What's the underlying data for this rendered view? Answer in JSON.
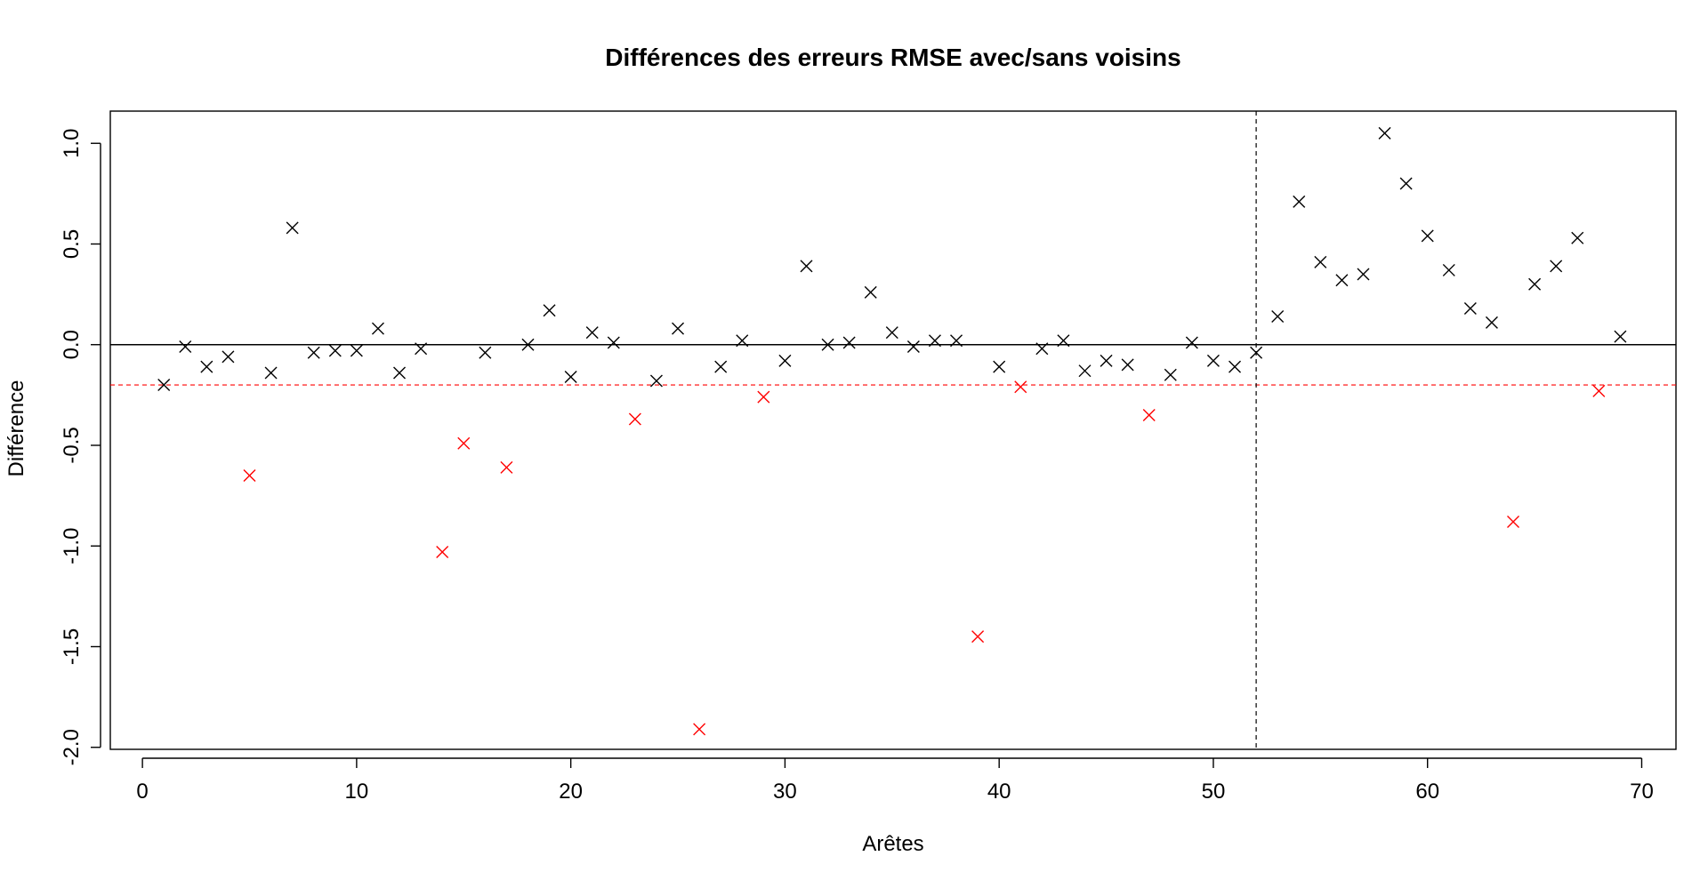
{
  "chart_data": {
    "type": "scatter",
    "title": "Différences des erreurs RMSE avec/sans voisins",
    "xlabel": "Arêtes",
    "ylabel": "Différence",
    "xlim": [
      -1.5,
      71.6
    ],
    "ylim": [
      -2.01,
      1.16
    ],
    "x_ticks": [
      0,
      10,
      20,
      30,
      40,
      50,
      60,
      70
    ],
    "x_tick_labels": [
      "0",
      "10",
      "20",
      "30",
      "40",
      "50",
      "60",
      "70"
    ],
    "y_ticks": [
      -2.0,
      -1.5,
      -1.0,
      -0.5,
      0.0,
      0.5,
      1.0
    ],
    "y_tick_labels": [
      "-2.0",
      "-1.5",
      "-1.0",
      "-0.5",
      "0.0",
      "0.5",
      "1.0"
    ],
    "grid": false,
    "marker": "x",
    "colors": {
      "normal": "#000000",
      "highlight": "#ff0000",
      "threshold_line": "#ff0000",
      "zero_line": "#000000",
      "vertical_line": "#000000"
    },
    "reference_lines": {
      "horizontal_solid": 0.0,
      "horizontal_dashed_red": -0.2,
      "vertical_dashed": 52
    },
    "series": [
      {
        "color": "#000000",
        "x": [
          1,
          2,
          3,
          4,
          6,
          7,
          8,
          9,
          10,
          11,
          12,
          13,
          16,
          18,
          19,
          20,
          21,
          22,
          24,
          25,
          27,
          28,
          30,
          31,
          32,
          33,
          34,
          35,
          36,
          37,
          38,
          40,
          42,
          43,
          44,
          45,
          46,
          48,
          49,
          50,
          51,
          52,
          53,
          54,
          55,
          56,
          57,
          58,
          59,
          60,
          61,
          62,
          63,
          65,
          66,
          67,
          69
        ],
        "y": [
          -0.2,
          -0.01,
          -0.11,
          -0.06,
          -0.14,
          0.58,
          -0.04,
          -0.03,
          -0.03,
          0.08,
          -0.14,
          -0.02,
          -0.04,
          0.0,
          0.17,
          -0.16,
          0.06,
          0.01,
          -0.18,
          0.08,
          -0.11,
          0.02,
          -0.08,
          0.39,
          0.0,
          0.01,
          0.26,
          0.06,
          -0.01,
          0.02,
          0.02,
          -0.11,
          -0.02,
          0.02,
          -0.13,
          -0.08,
          -0.1,
          -0.15,
          0.01,
          -0.08,
          -0.11,
          -0.04,
          0.14,
          0.71,
          0.41,
          0.32,
          0.35,
          1.05,
          0.8,
          0.54,
          0.37,
          0.18,
          0.11,
          0.3,
          0.39,
          0.53,
          0.04
        ]
      },
      {
        "color": "#ff0000",
        "x": [
          5,
          14,
          15,
          17,
          23,
          26,
          29,
          39,
          41,
          47,
          64,
          68
        ],
        "y": [
          -0.65,
          -1.03,
          -0.49,
          -0.61,
          -0.37,
          -1.91,
          -0.26,
          -1.45,
          -0.21,
          -0.35,
          -0.88,
          -0.23
        ]
      }
    ]
  }
}
